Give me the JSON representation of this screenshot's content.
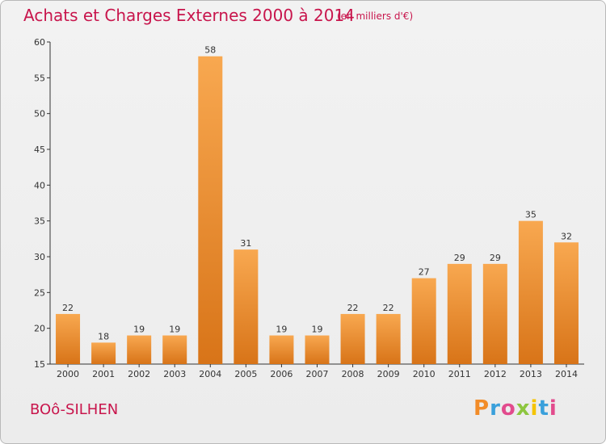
{
  "page": {
    "title": "Achats et Charges Externes 2000 à 2014",
    "unit_note": "(en milliers d'€)",
    "commune": "BOô-SILHEN",
    "brand_letters": [
      "P",
      "r",
      "o",
      "x",
      "i",
      "t",
      "i"
    ]
  },
  "colors": {
    "title": "#c8154c",
    "bar_light": "#f8a850",
    "bar_dark": "#d87418",
    "axis": "#333333"
  },
  "chart_data": {
    "type": "bar",
    "categories": [
      "2000",
      "2001",
      "2002",
      "2003",
      "2004",
      "2005",
      "2006",
      "2007",
      "2008",
      "2009",
      "2010",
      "2011",
      "2012",
      "2013",
      "2014"
    ],
    "values": [
      22,
      18,
      19,
      19,
      58,
      31,
      19,
      19,
      22,
      22,
      27,
      29,
      29,
      35,
      32
    ],
    "title": "Achats et Charges Externes 2000 à 2014",
    "ylim": [
      15,
      60
    ],
    "yticks": [
      15,
      20,
      25,
      30,
      35,
      40,
      45,
      50,
      55,
      60
    ],
    "grid": false,
    "legend": "none"
  }
}
